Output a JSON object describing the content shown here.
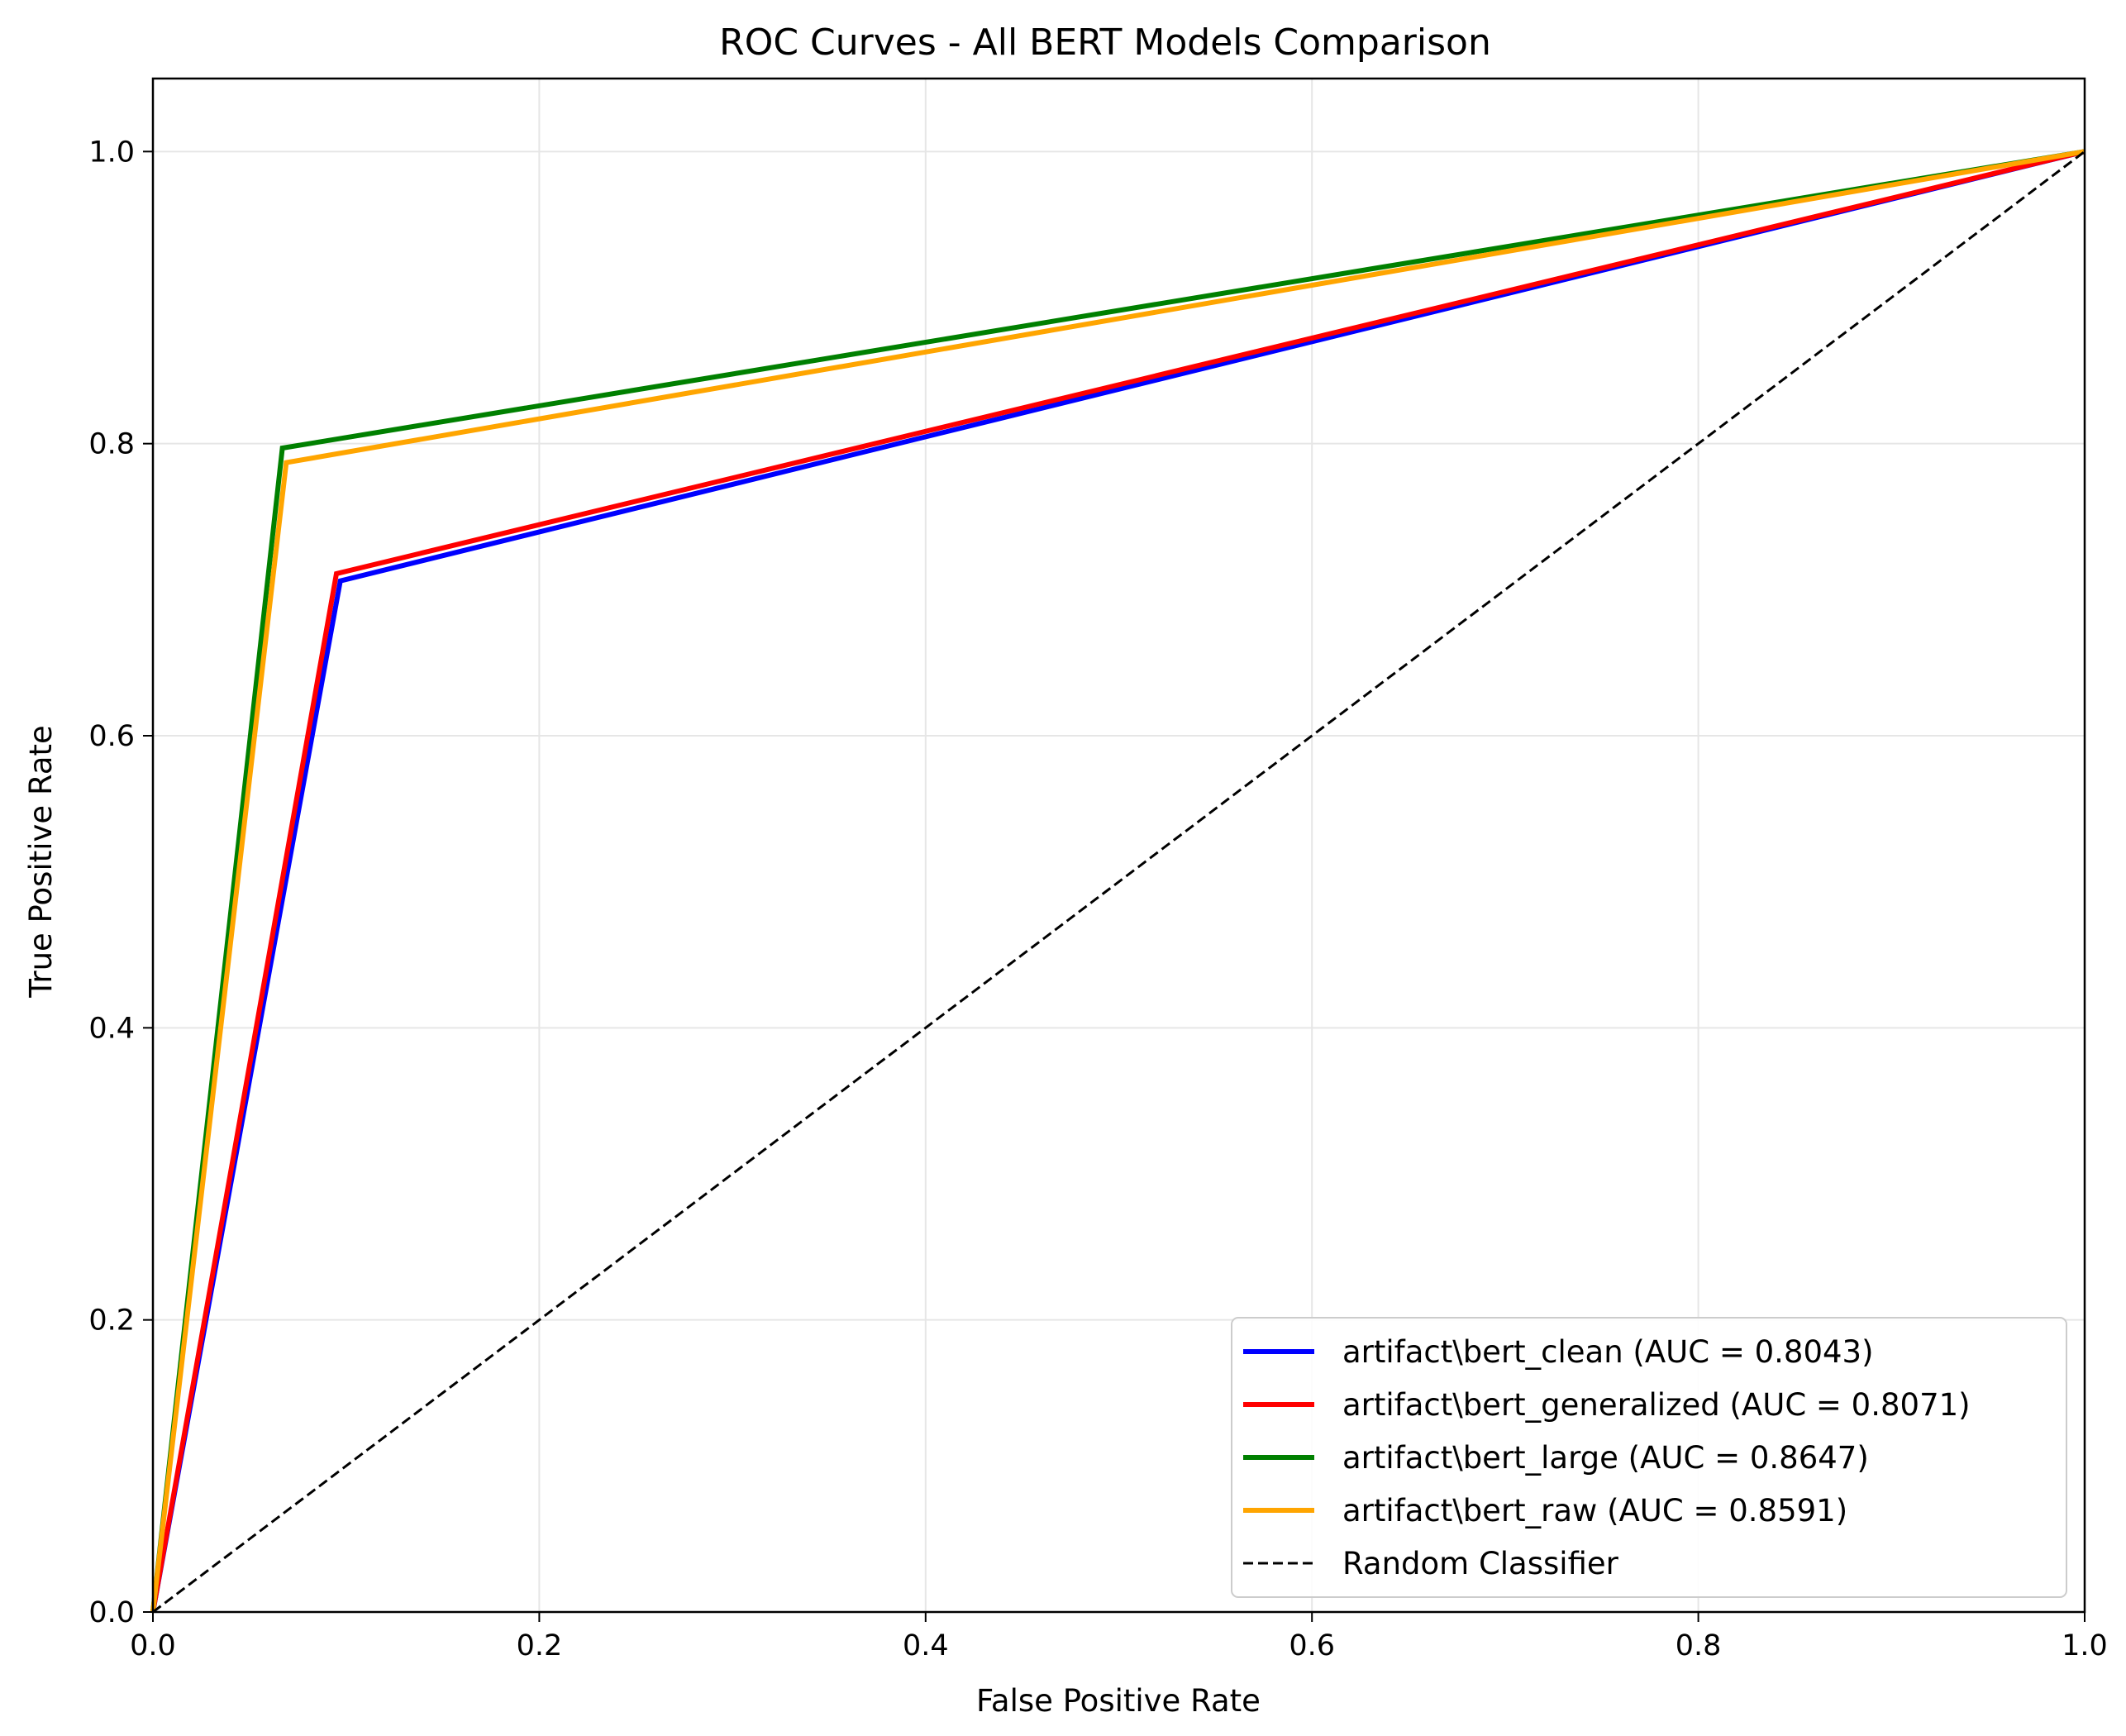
{
  "chart_data": {
    "type": "line",
    "title": "ROC Curves - All BERT Models Comparison",
    "xlabel": "False Positive Rate",
    "ylabel": "True Positive Rate",
    "xlim": [
      0.0,
      1.0
    ],
    "ylim": [
      0.0,
      1.05
    ],
    "xticks": [
      "0.0",
      "0.2",
      "0.4",
      "0.6",
      "0.8",
      "1.0"
    ],
    "yticks": [
      "0.0",
      "0.2",
      "0.4",
      "0.6",
      "0.8",
      "1.0"
    ],
    "grid": true,
    "legend_position": "lower-right",
    "series": [
      {
        "name": "artifact\\bert_clean (AUC = 0.8043)",
        "color": "#0000ff",
        "style": "solid",
        "x": [
          0.0,
          0.097,
          1.0
        ],
        "y": [
          0.0,
          0.706,
          1.0
        ]
      },
      {
        "name": "artifact\\bert_generalized (AUC = 0.8071)",
        "color": "#ff0000",
        "style": "solid",
        "x": [
          0.0,
          0.095,
          1.0
        ],
        "y": [
          0.0,
          0.711,
          1.0
        ]
      },
      {
        "name": "artifact\\bert_large (AUC = 0.8647)",
        "color": "#008000",
        "style": "solid",
        "x": [
          0.0,
          0.067,
          1.0
        ],
        "y": [
          0.0,
          0.797,
          1.0
        ]
      },
      {
        "name": "artifact\\bert_raw (AUC = 0.8591)",
        "color": "#ffa500",
        "style": "solid",
        "x": [
          0.0,
          0.069,
          1.0
        ],
        "y": [
          0.0,
          0.787,
          1.0
        ]
      },
      {
        "name": "Random Classifier",
        "color": "#000000",
        "style": "dashed",
        "x": [
          0.0,
          1.0
        ],
        "y": [
          0.0,
          1.0
        ]
      }
    ]
  }
}
